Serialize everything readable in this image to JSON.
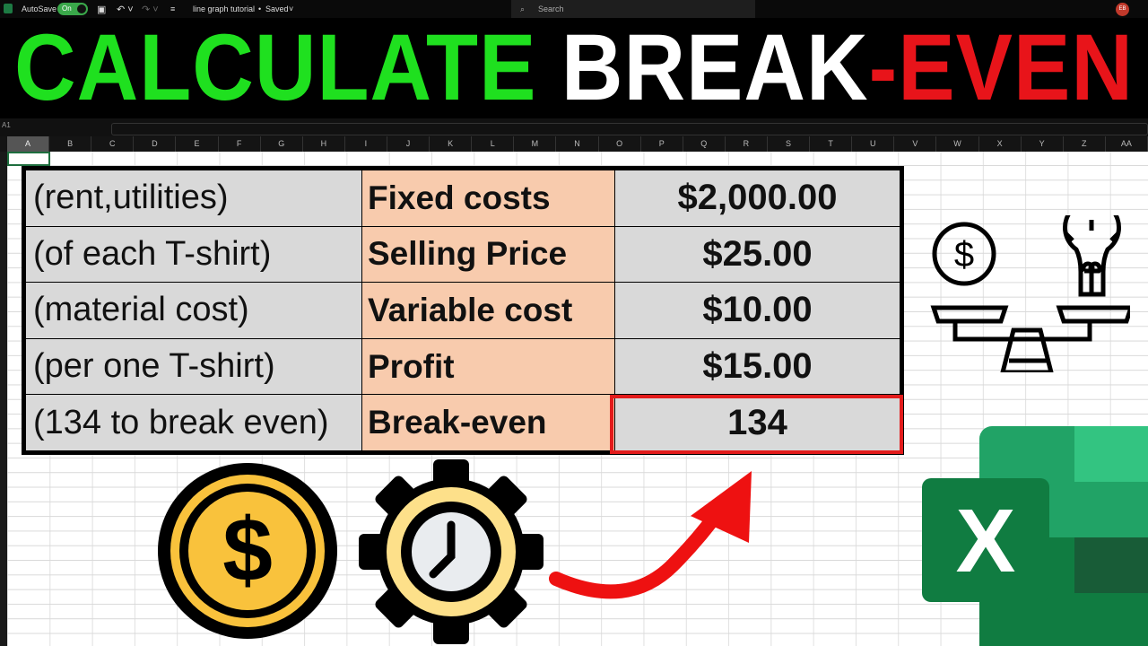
{
  "titlebar": {
    "autosave_label": "AutoSave",
    "autosave_state": "On",
    "filename": "line graph tutorial",
    "status": "Saved",
    "search_placeholder": "Search",
    "user_initials": "EB"
  },
  "banner": {
    "word1": "CALCULATE",
    "word2": "BREAK",
    "word3": "-EVEN",
    "colors": {
      "word1": "#1fe01f",
      "word2": "#ffffff",
      "word3": "#e8141a"
    }
  },
  "formula_bar": {
    "name_box": "A1"
  },
  "columns": [
    "A",
    "B",
    "C",
    "D",
    "E",
    "F",
    "G",
    "H",
    "I",
    "J",
    "K",
    "L",
    "M",
    "N",
    "O",
    "P",
    "Q",
    "R",
    "S",
    "T",
    "U",
    "V",
    "W",
    "X",
    "Y",
    "Z",
    "AA"
  ],
  "table": {
    "rows": [
      {
        "note": "(rent,utilities)",
        "label": "Fixed costs",
        "value": "$2,000.00"
      },
      {
        "note": "(of each T-shirt)",
        "label": "Selling Price",
        "value": "$25.00"
      },
      {
        "note": "(material cost)",
        "label": "Variable cost",
        "value": "$10.00"
      },
      {
        "note": "(per one T-shirt)",
        "label": "Profit",
        "value": "$15.00"
      },
      {
        "note": "(134 to break even)",
        "label": "Break-even",
        "value": "134"
      }
    ],
    "colors": {
      "label_fill": "#f8cbad",
      "value_fill": "#d9d9d9",
      "highlight": "#e31b1b"
    }
  },
  "icons": [
    "balance-scale-icon",
    "coin-dollar-icon",
    "gear-clock-icon",
    "red-arrow-icon",
    "excel-logo-icon"
  ]
}
